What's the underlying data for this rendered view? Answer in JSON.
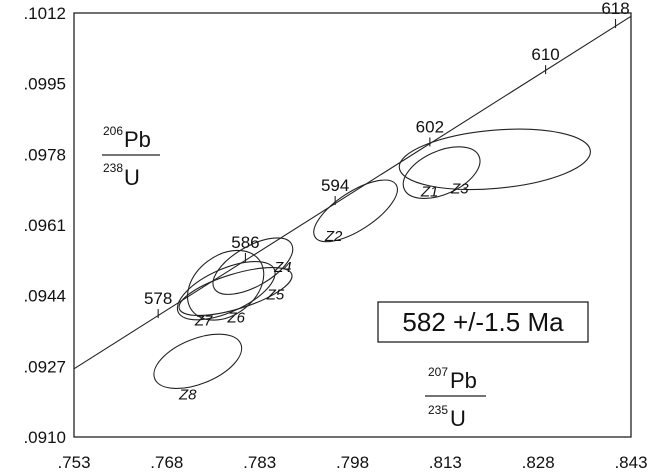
{
  "chart_data": {
    "type": "scatter",
    "subtype": "concordia-diagram",
    "xlim": [
      0.753,
      0.843
    ],
    "ylim": [
      0.091,
      0.1012
    ],
    "x_ticks": [
      ".753",
      ".768",
      ".783",
      ".798",
      ".813",
      ".828",
      ".843"
    ],
    "y_ticks": [
      ".1012",
      ".0995",
      ".0978",
      ".0961",
      ".0944",
      ".0927",
      ".0910"
    ],
    "xlabel": {
      "sup1": "207",
      "elem1": "Pb",
      "sup2": "235",
      "elem2": "U"
    },
    "ylabel": {
      "sup1": "206",
      "elem1": "Pb",
      "sup2": "238",
      "elem2": "U"
    },
    "concordia": {
      "line": {
        "x": [
          0.753,
          0.843
        ],
        "y": [
          0.09264,
          0.10112
        ]
      },
      "ages": [
        {
          "label": "578",
          "x": 0.7666,
          "y": 0.09386
        },
        {
          "label": "586",
          "x": 0.7807,
          "y": 0.09521
        },
        {
          "label": "594",
          "x": 0.7952,
          "y": 0.09658
        },
        {
          "label": "602",
          "x": 0.8105,
          "y": 0.09799
        },
        {
          "label": "610",
          "x": 0.8292,
          "y": 0.09973
        },
        {
          "label": "618",
          "x": 0.8405,
          "y": 0.10084
        }
      ]
    },
    "ellipses": [
      {
        "label": "Z1",
        "cx": 0.8124,
        "cy": 0.09736,
        "rx": 0.0066,
        "ry": 0.00052,
        "angle_deg": -24
      },
      {
        "label": "Z3",
        "cx": 0.821,
        "cy": 0.09768,
        "rx": 0.0155,
        "ry": 0.0007,
        "angle_deg": -5
      },
      {
        "label": "Z2",
        "cx": 0.7985,
        "cy": 0.09644,
        "rx": 0.0078,
        "ry": 0.00046,
        "angle_deg": -33
      },
      {
        "label": "Z4",
        "cx": 0.7819,
        "cy": 0.09511,
        "rx": 0.0072,
        "ry": 0.00048,
        "angle_deg": -30
      },
      {
        "label": "Z5",
        "cx": 0.7791,
        "cy": 0.0945,
        "rx": 0.0095,
        "ry": 0.00042,
        "angle_deg": -17
      },
      {
        "label": "Z6",
        "cx": 0.7776,
        "cy": 0.09452,
        "rx": 0.0085,
        "ry": 0.00052,
        "angle_deg": -24
      },
      {
        "label": "Z7",
        "cx": 0.7775,
        "cy": 0.09465,
        "rx": 0.0068,
        "ry": 0.00072,
        "angle_deg": -37
      },
      {
        "label": "Z8",
        "cx": 0.773,
        "cy": 0.09282,
        "rx": 0.0075,
        "ry": 0.00054,
        "angle_deg": -22
      }
    ],
    "annotation": {
      "text": "582 +/-1.5 Ma"
    }
  }
}
